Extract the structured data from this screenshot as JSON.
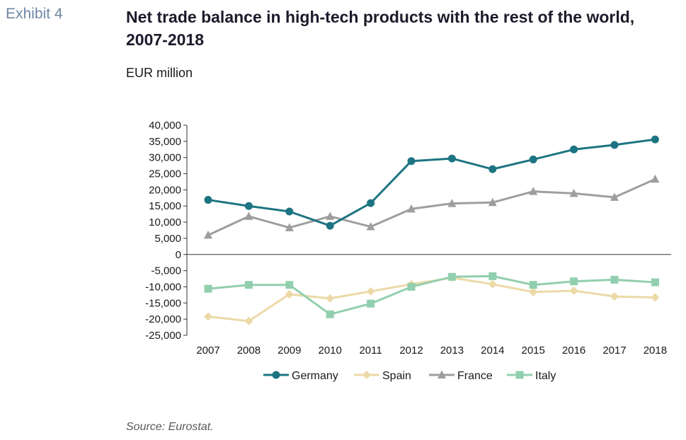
{
  "exhibit_label": "Exhibit 4",
  "title": "Net trade balance in high-tech products with the rest of the world, 2007-2018",
  "units": "EUR million",
  "source": "Source: Eurostat.",
  "chart_data": {
    "type": "line",
    "x": [
      "2007",
      "2008",
      "2009",
      "2010",
      "2011",
      "2012",
      "2013",
      "2014",
      "2015",
      "2016",
      "2017",
      "2018"
    ],
    "ylim": [
      -25000,
      40000
    ],
    "yticks": [
      40000,
      35000,
      30000,
      25000,
      20000,
      15000,
      10000,
      5000,
      0,
      -5000,
      -10000,
      -15000,
      -20000,
      -25000
    ],
    "ytick_labels": [
      "40,000",
      "35,000",
      "30,000",
      "25,000",
      "20,000",
      "15,000",
      "10,000",
      "5,000",
      "0",
      "-5,000",
      "-10,000",
      "-15,000",
      "-20,000",
      "-25,000"
    ],
    "grid": false,
    "legend": "bottom",
    "series": [
      {
        "name": "Germany",
        "color": "#1d7482",
        "marker": "circle",
        "values": [
          16900,
          15000,
          13300,
          8900,
          15900,
          28900,
          29700,
          26400,
          29400,
          32500,
          33900,
          35600
        ]
      },
      {
        "name": "Spain",
        "color": "#ecd9a7",
        "marker": "diamond",
        "values": [
          -19200,
          -20600,
          -12300,
          -13600,
          -11400,
          -9200,
          -7200,
          -9200,
          -11600,
          -11200,
          -13000,
          -13300
        ]
      },
      {
        "name": "France",
        "color": "#9e9e9e",
        "marker": "triangle",
        "values": [
          6000,
          11800,
          8300,
          11800,
          8600,
          14100,
          15800,
          16100,
          19500,
          18900,
          17700,
          23300
        ]
      },
      {
        "name": "Italy",
        "color": "#92cfae",
        "marker": "square",
        "values": [
          -10600,
          -9400,
          -9400,
          -18500,
          -15200,
          -10000,
          -6900,
          -6700,
          -9400,
          -8300,
          -7800,
          -8600
        ]
      }
    ]
  }
}
